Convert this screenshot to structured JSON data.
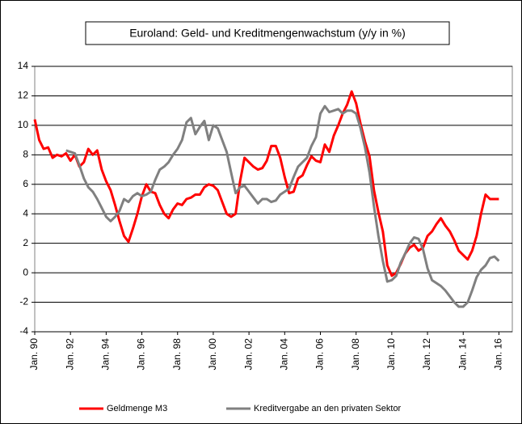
{
  "chart_data": {
    "type": "line",
    "title": "Euroland: Geld- und Kreditmengenwachstum (y/y in %)",
    "x": [
      1990,
      1990.25,
      1990.5,
      1990.75,
      1991,
      1991.25,
      1991.5,
      1991.75,
      1992,
      1992.25,
      1992.5,
      1992.75,
      1993,
      1993.25,
      1993.5,
      1993.75,
      1994,
      1994.25,
      1994.5,
      1994.75,
      1995,
      1995.25,
      1995.5,
      1995.75,
      1996,
      1996.25,
      1996.5,
      1996.75,
      1997,
      1997.25,
      1997.5,
      1997.75,
      1998,
      1998.25,
      1998.5,
      1998.75,
      1999,
      1999.25,
      1999.5,
      1999.75,
      2000,
      2000.25,
      2000.5,
      2000.75,
      2001,
      2001.25,
      2001.5,
      2001.75,
      2002,
      2002.25,
      2002.5,
      2002.75,
      2003,
      2003.25,
      2003.5,
      2003.75,
      2004,
      2004.25,
      2004.5,
      2004.75,
      2005,
      2005.25,
      2005.5,
      2005.75,
      2006,
      2006.25,
      2006.5,
      2006.75,
      2007,
      2007.25,
      2007.5,
      2007.75,
      2008,
      2008.25,
      2008.5,
      2008.75,
      2009,
      2009.25,
      2009.5,
      2009.75,
      2010,
      2010.25,
      2010.5,
      2010.75,
      2011,
      2011.25,
      2011.5,
      2011.75,
      2012,
      2012.25,
      2012.5,
      2012.75,
      2013,
      2013.25,
      2013.5,
      2013.75,
      2014,
      2014.25,
      2014.5,
      2014.75,
      2015,
      2015.25,
      2015.5,
      2015.75,
      2016
    ],
    "series": [
      {
        "name": "Geldmenge M3",
        "color": "#ff0000",
        "values": [
          10.4,
          9.0,
          8.4,
          8.5,
          7.8,
          8.0,
          7.9,
          8.1,
          7.6,
          8.0,
          7.2,
          7.5,
          8.4,
          8.0,
          8.3,
          7.0,
          6.2,
          5.6,
          4.6,
          3.5,
          2.5,
          2.1,
          3.0,
          4.0,
          5.2,
          6.0,
          5.5,
          5.4,
          4.6,
          4.0,
          3.7,
          4.3,
          4.7,
          4.6,
          5.0,
          5.1,
          5.3,
          5.3,
          5.8,
          6.0,
          5.9,
          5.6,
          4.8,
          4.0,
          3.8,
          4.0,
          6.2,
          7.8,
          7.5,
          7.2,
          7.0,
          7.1,
          7.6,
          8.6,
          8.6,
          7.8,
          6.5,
          5.4,
          5.5,
          6.4,
          6.6,
          7.3,
          7.9,
          7.6,
          7.5,
          8.7,
          8.2,
          9.3,
          10.0,
          10.8,
          11.4,
          12.3,
          11.5,
          10.1,
          8.9,
          7.9,
          5.6,
          4.1,
          2.8,
          0.5,
          -0.2,
          0.0,
          0.6,
          1.3,
          1.7,
          1.9,
          1.5,
          1.7,
          2.5,
          2.8,
          3.3,
          3.7,
          3.2,
          2.8,
          2.2,
          1.5,
          1.2,
          0.9,
          1.5,
          2.5,
          4.0,
          5.3,
          5.0,
          5.0,
          5.0
        ]
      },
      {
        "name": "Kreditvergabe an den privaten Sektor",
        "color": "#808080",
        "values": [
          null,
          null,
          null,
          null,
          null,
          null,
          null,
          8.3,
          8.2,
          8.1,
          7.3,
          6.4,
          5.8,
          5.5,
          5.0,
          4.4,
          3.8,
          3.5,
          3.8,
          4.2,
          5.0,
          4.8,
          5.2,
          5.4,
          5.2,
          5.3,
          5.5,
          6.3,
          7.0,
          7.2,
          7.5,
          8.0,
          8.4,
          9.0,
          10.2,
          10.5,
          9.4,
          9.9,
          10.3,
          9.0,
          10.0,
          9.8,
          9.0,
          8.2,
          6.8,
          5.4,
          5.8,
          5.9,
          5.5,
          5.1,
          4.7,
          5.0,
          5.0,
          4.8,
          4.9,
          5.3,
          5.5,
          5.7,
          6.5,
          7.2,
          7.5,
          7.8,
          8.6,
          9.2,
          10.8,
          11.3,
          10.9,
          11.0,
          11.1,
          10.8,
          11.0,
          11.0,
          10.8,
          9.8,
          8.5,
          6.8,
          4.5,
          2.5,
          0.8,
          -0.6,
          -0.5,
          -0.2,
          0.7,
          1.3,
          2.0,
          2.4,
          2.3,
          1.6,
          0.3,
          -0.5,
          -0.7,
          -0.9,
          -1.2,
          -1.6,
          -2.0,
          -2.3,
          -2.3,
          -2.0,
          -1.2,
          -0.3,
          0.2,
          0.5,
          1.0,
          1.1,
          0.8
        ]
      }
    ],
    "xlim": [
      1990,
      2016.75
    ],
    "xticks": [
      {
        "value": 1990,
        "label": "Jan. 90"
      },
      {
        "value": 1992,
        "label": "Jan. 92"
      },
      {
        "value": 1994,
        "label": "Jan. 94"
      },
      {
        "value": 1996,
        "label": "Jan. 96"
      },
      {
        "value": 1998,
        "label": "Jan. 98"
      },
      {
        "value": 2000,
        "label": "Jan. 00"
      },
      {
        "value": 2002,
        "label": "Jan. 02"
      },
      {
        "value": 2004,
        "label": "Jan. 04"
      },
      {
        "value": 2006,
        "label": "Jan. 06"
      },
      {
        "value": 2008,
        "label": "Jan. 08"
      },
      {
        "value": 2010,
        "label": "Jan. 10"
      },
      {
        "value": 2012,
        "label": "Jan. 12"
      },
      {
        "value": 2014,
        "label": "Jan. 14"
      },
      {
        "value": 2016,
        "label": "Jan. 16"
      }
    ],
    "ylim": [
      -4,
      14
    ],
    "yticks": [
      -4,
      -2,
      0,
      2,
      4,
      6,
      8,
      10,
      12,
      14
    ],
    "grid": true,
    "legend": "bottom"
  }
}
